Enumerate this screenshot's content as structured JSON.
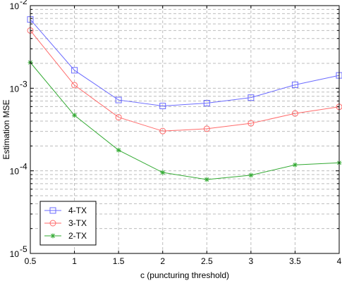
{
  "chart_data": {
    "type": "line",
    "xlabel": "c (puncturing threshold)",
    "ylabel": "Estimation MSE",
    "x": [
      0.5,
      1,
      1.5,
      2,
      2.5,
      3,
      3.5,
      4
    ],
    "xlim": [
      0.5,
      4
    ],
    "ylim": [
      1e-05,
      0.01
    ],
    "yscale": "log",
    "x_tick_labels": [
      "0.5",
      "1",
      "1.5",
      "2",
      "2.5",
      "3",
      "3.5",
      "4"
    ],
    "y_tick_labels": [
      {
        "base": "10",
        "exp": "-5"
      },
      {
        "base": "10",
        "exp": "-4"
      },
      {
        "base": "10",
        "exp": "-3"
      },
      {
        "base": "10",
        "exp": "-2"
      }
    ],
    "grid": true,
    "legend_position": "bottom-left",
    "series": [
      {
        "name": "4-TX",
        "color": "#6b6bff",
        "marker": "square",
        "values": [
          0.0068,
          0.00165,
          0.00072,
          0.00061,
          0.00066,
          0.00077,
          0.0011,
          0.00143
        ]
      },
      {
        "name": "3-TX",
        "color": "#ff6b6b",
        "marker": "circle",
        "values": [
          0.005,
          0.00109,
          0.000445,
          0.000303,
          0.000323,
          0.000376,
          0.000495,
          0.000595
        ]
      },
      {
        "name": "2-TX",
        "color": "#33aa33",
        "marker": "star",
        "values": [
          0.00205,
          0.00047,
          0.000178,
          9.55e-05,
          7.85e-05,
          8.85e-05,
          0.000118,
          0.000125
        ]
      }
    ]
  }
}
